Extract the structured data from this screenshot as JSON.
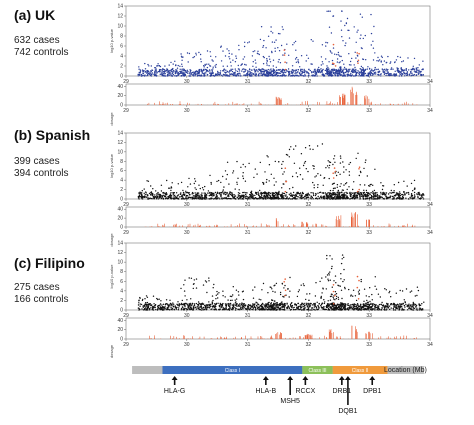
{
  "colors": {
    "uk_points": "#2a3f9a",
    "other_points": "#111111",
    "bars": "#e8623a",
    "axis": "#444444"
  },
  "chart_data": [
    {
      "type": "scatter",
      "tag": "(a)",
      "population": "UK",
      "info_lines": [
        "632 cases",
        "742 controls"
      ],
      "ylabel": "log10 p-value",
      "bar_ylabel": "dosage",
      "xticks": [
        "29",
        "30",
        "31",
        "32",
        "33",
        "34"
      ],
      "xlim": [
        29,
        34
      ],
      "ylim": [
        0,
        14
      ],
      "yticks": [
        "0",
        "2",
        "4",
        "6",
        "8",
        "10",
        "12",
        "14"
      ],
      "bar_yticks": [
        "0",
        "20",
        "40"
      ],
      "color_key": "uk_points",
      "regions": [
        {
          "x": [
            29.2,
            29.9
          ],
          "peak": 3
        },
        {
          "x": [
            29.9,
            30.5
          ],
          "peak": 5
        },
        {
          "x": [
            30.5,
            31.2
          ],
          "peak": 7
        },
        {
          "x": [
            31.2,
            31.6
          ],
          "peak": 10
        },
        {
          "x": [
            31.6,
            32.3
          ],
          "peak": 8
        },
        {
          "x": [
            32.3,
            32.6
          ],
          "peak": 13
        },
        {
          "x": [
            32.6,
            33.1
          ],
          "peak": 13
        },
        {
          "x": [
            33.1,
            33.9
          ],
          "peak": 4
        }
      ],
      "bar_peaks": [
        {
          "x": 31.5,
          "h": 18
        },
        {
          "x": 32.0,
          "h": 10
        },
        {
          "x": 32.55,
          "h": 25
        },
        {
          "x": 32.75,
          "h": 40
        },
        {
          "x": 32.95,
          "h": 22
        }
      ]
    },
    {
      "type": "scatter",
      "tag": "(b)",
      "population": "Spanish",
      "info_lines": [
        "399 cases",
        "394 controls"
      ],
      "ylabel": "log10 p-value",
      "bar_ylabel": "dosage",
      "xticks": [
        "29",
        "30",
        "31",
        "32",
        "33",
        "34"
      ],
      "xlim": [
        29,
        34
      ],
      "ylim": [
        0,
        14
      ],
      "yticks": [
        "0",
        "2",
        "4",
        "6",
        "8",
        "10",
        "12",
        "14"
      ],
      "bar_yticks": [
        "0",
        "20",
        "40"
      ],
      "color_key": "other_points",
      "regions": [
        {
          "x": [
            29.2,
            29.9
          ],
          "peak": 4
        },
        {
          "x": [
            29.9,
            30.5
          ],
          "peak": 6
        },
        {
          "x": [
            30.5,
            31.2
          ],
          "peak": 8
        },
        {
          "x": [
            31.2,
            31.6
          ],
          "peak": 11
        },
        {
          "x": [
            31.6,
            32.3
          ],
          "peak": 12
        },
        {
          "x": [
            32.3,
            32.6
          ],
          "peak": 10
        },
        {
          "x": [
            32.6,
            33.1
          ],
          "peak": 10
        },
        {
          "x": [
            33.1,
            33.9
          ],
          "peak": 4
        }
      ],
      "bar_peaks": [
        {
          "x": 31.5,
          "h": 20
        },
        {
          "x": 31.95,
          "h": 12
        },
        {
          "x": 32.5,
          "h": 28
        },
        {
          "x": 32.75,
          "h": 38
        },
        {
          "x": 32.95,
          "h": 18
        }
      ]
    },
    {
      "type": "scatter",
      "tag": "(c)",
      "population": "Filipino",
      "info_lines": [
        "275 cases",
        "166 controls"
      ],
      "ylabel": "log10 p-value",
      "bar_ylabel": "dosage",
      "xticks": [
        "29",
        "30",
        "31",
        "32",
        "33",
        "34"
      ],
      "xlim": [
        29,
        34
      ],
      "ylim": [
        0,
        14
      ],
      "yticks": [
        "0",
        "2",
        "4",
        "6",
        "8",
        "10",
        "12",
        "14"
      ],
      "bar_yticks": [
        "0",
        "20",
        "40"
      ],
      "color_key": "other_points",
      "regions": [
        {
          "x": [
            29.2,
            29.9
          ],
          "peak": 3
        },
        {
          "x": [
            29.9,
            30.5
          ],
          "peak": 7
        },
        {
          "x": [
            30.5,
            31.2
          ],
          "peak": 5
        },
        {
          "x": [
            31.2,
            31.6
          ],
          "peak": 6
        },
        {
          "x": [
            31.6,
            32.3
          ],
          "peak": 7
        },
        {
          "x": [
            32.3,
            32.6
          ],
          "peak": 13
        },
        {
          "x": [
            32.6,
            33.1
          ],
          "peak": 7
        },
        {
          "x": [
            33.1,
            33.9
          ],
          "peak": 5
        }
      ],
      "bar_peaks": [
        {
          "x": 31.5,
          "h": 15
        },
        {
          "x": 32.0,
          "h": 12
        },
        {
          "x": 32.4,
          "h": 22
        },
        {
          "x": 32.75,
          "h": 30
        },
        {
          "x": 33.0,
          "h": 16
        }
      ]
    }
  ],
  "gene_map": {
    "classes": [
      {
        "label": "Class I",
        "x": [
          29.6,
          31.9
        ],
        "color": "#3d6fbf"
      },
      {
        "label": "Class III",
        "x": [
          31.9,
          32.4
        ],
        "color": "#8cc05a"
      },
      {
        "label": "Class II",
        "x": [
          32.4,
          33.3
        ],
        "color": "#f09a3c"
      }
    ],
    "flank_color": "#bdbdbd",
    "location_label": "Location (Mb)",
    "genes": [
      {
        "name": "HLA-G",
        "x": 29.8,
        "row": 0
      },
      {
        "name": "HLA-B",
        "x": 31.3,
        "row": 0
      },
      {
        "name": "MSH5",
        "x": 31.7,
        "row": 1
      },
      {
        "name": "RCCX",
        "x": 31.95,
        "row": 0
      },
      {
        "name": "DRB1",
        "x": 32.55,
        "row": 0
      },
      {
        "name": "DQB1",
        "x": 32.65,
        "row": 2
      },
      {
        "name": "DPB1",
        "x": 33.05,
        "row": 0
      }
    ]
  }
}
